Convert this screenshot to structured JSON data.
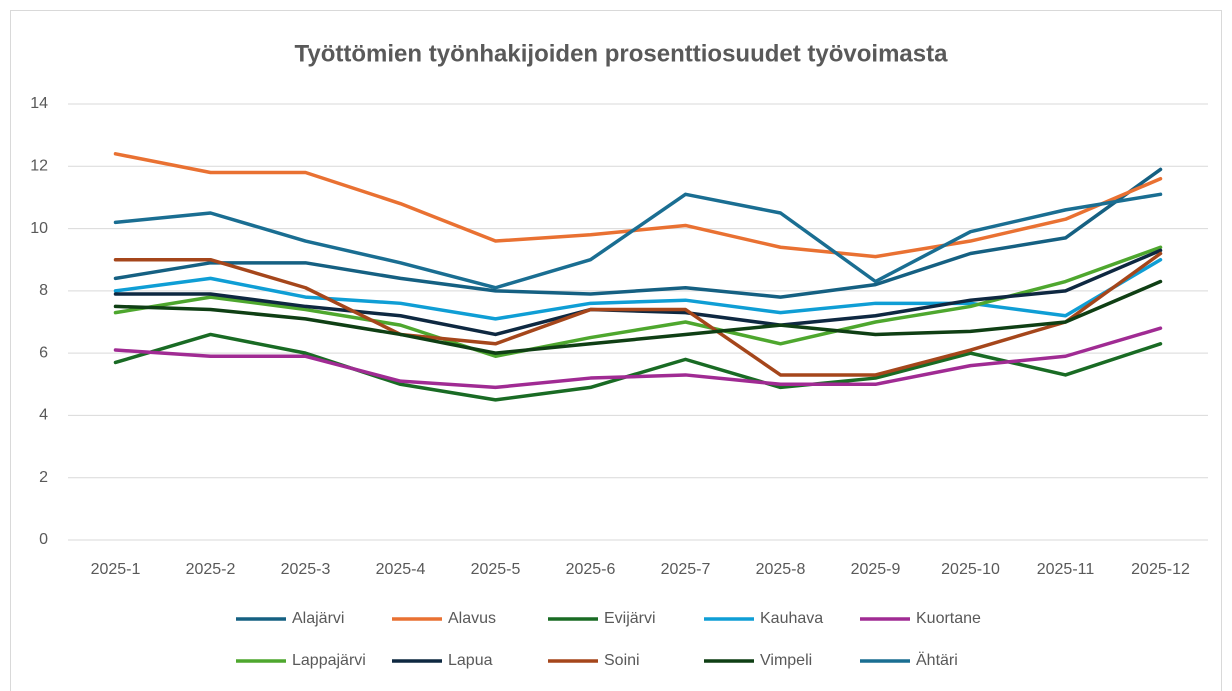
{
  "chart_data": {
    "type": "line",
    "title": "Työttömien työnhakijoiden prosenttiosuudet työvoimasta",
    "categories": [
      "2025-1",
      "2025-2",
      "2025-3",
      "2025-4",
      "2025-5",
      "2025-6",
      "2025-7",
      "2025-8",
      "2025-9",
      "2025-10",
      "2025-11",
      "2025-12"
    ],
    "ylim": [
      0,
      14
    ],
    "yticks": [
      0,
      2,
      4,
      6,
      8,
      10,
      12,
      14
    ],
    "grid": true,
    "legend": "bottom",
    "series": [
      {
        "name": "Alajärvi",
        "color": "#156082",
        "values": [
          8.4,
          8.9,
          8.9,
          8.4,
          8.0,
          7.9,
          8.1,
          7.8,
          8.2,
          9.2,
          9.7,
          11.9
        ]
      },
      {
        "name": "Alavus",
        "color": "#e97132",
        "values": [
          12.4,
          11.8,
          11.8,
          10.8,
          9.6,
          9.8,
          10.1,
          9.4,
          9.1,
          9.6,
          10.3,
          11.6
        ]
      },
      {
        "name": "Evijärvi",
        "color": "#196b24",
        "values": [
          5.7,
          6.6,
          6.0,
          5.0,
          4.5,
          4.9,
          5.8,
          4.9,
          5.2,
          6.0,
          5.3,
          6.3
        ]
      },
      {
        "name": "Kauhava",
        "color": "#0f9ed5",
        "values": [
          8.0,
          8.4,
          7.8,
          7.6,
          7.1,
          7.6,
          7.7,
          7.3,
          7.6,
          7.6,
          7.2,
          9.0
        ]
      },
      {
        "name": "Kuortane",
        "color": "#a02b93",
        "values": [
          6.1,
          5.9,
          5.9,
          5.1,
          4.9,
          5.2,
          5.3,
          5.0,
          5.0,
          5.6,
          5.9,
          6.8
        ]
      },
      {
        "name": "Lappajärvi",
        "color": "#4ea72e",
        "values": [
          7.3,
          7.8,
          7.4,
          6.9,
          5.9,
          6.5,
          7.0,
          6.3,
          7.0,
          7.5,
          8.3,
          9.4
        ]
      },
      {
        "name": "Lapua",
        "color": "#0e2841",
        "values": [
          7.9,
          7.9,
          7.5,
          7.2,
          6.6,
          7.4,
          7.3,
          6.9,
          7.2,
          7.7,
          8.0,
          9.3
        ]
      },
      {
        "name": "Soini",
        "color": "#a5461b",
        "values": [
          9.0,
          9.0,
          8.1,
          6.6,
          6.3,
          7.4,
          7.4,
          5.3,
          5.3,
          6.1,
          7.0,
          9.2
        ]
      },
      {
        "name": "Vimpeli",
        "color": "#0f3f14",
        "values": [
          7.5,
          7.4,
          7.1,
          6.6,
          6.0,
          6.3,
          6.6,
          6.9,
          6.6,
          6.7,
          7.0,
          8.3
        ]
      },
      {
        "name": "Ähtäri",
        "color": "#1a6e92",
        "values": [
          10.2,
          10.5,
          9.6,
          8.9,
          8.1,
          9.0,
          11.1,
          10.5,
          8.3,
          9.9,
          10.6,
          11.1
        ]
      }
    ]
  }
}
